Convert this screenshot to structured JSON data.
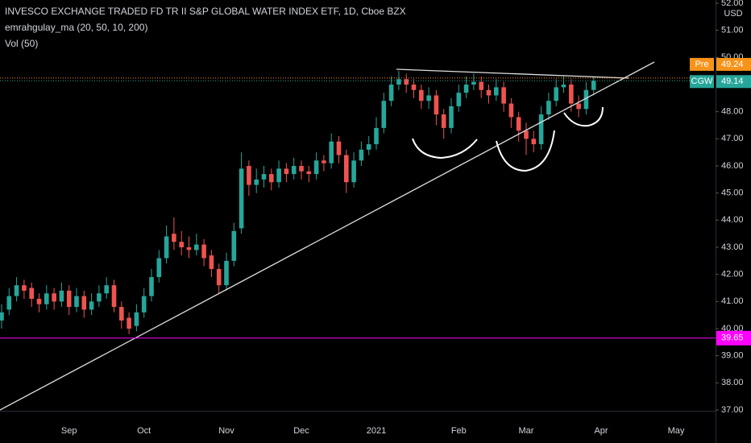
{
  "chart_data": {
    "type": "candlestick",
    "title": "INVESCO EXCHANGE TRADED FD TR II S&P GLOBAL WATER INDEX ETF, 1D, Cboe BZX",
    "indicators": [
      "emrahgulay_ma (20, 50, 10, 200)",
      "Vol (50)"
    ],
    "currency": "USD",
    "up_color": "#26a69a",
    "down_color": "#ef5350",
    "categories": [
      null,
      null,
      null,
      null,
      null,
      null,
      null,
      null,
      null,
      "Sep",
      null,
      null,
      null,
      null,
      null,
      null,
      null,
      null,
      null,
      "Oct",
      null,
      null,
      null,
      null,
      null,
      null,
      null,
      null,
      null,
      null,
      "Nov",
      null,
      null,
      null,
      null,
      null,
      null,
      null,
      null,
      null,
      "Dec",
      null,
      null,
      null,
      null,
      null,
      null,
      null,
      null,
      null,
      "2021",
      null,
      null,
      null,
      null,
      null,
      null,
      null,
      null,
      null,
      null,
      "Feb",
      null,
      null,
      null,
      null,
      null,
      null,
      null,
      null,
      "Mar",
      null,
      null,
      null,
      null,
      null,
      null,
      null,
      null,
      null,
      "Apr",
      null,
      null,
      null,
      null,
      null,
      null,
      null,
      null,
      null,
      "May",
      null,
      null,
      null,
      null,
      null
    ],
    "open": [
      40.3,
      40.7,
      41.2,
      41.6,
      41.5,
      41.1,
      40.9,
      41.3,
      41.0,
      41.4,
      40.8,
      41.2,
      40.7,
      41.0,
      41.3,
      41.6,
      40.8,
      40.4,
      40.1,
      40.6,
      41.2,
      41.9,
      42.6,
      43.5,
      43.2,
      43.0,
      42.9,
      43.1,
      42.7,
      42.2,
      41.6,
      42.5,
      43.7,
      46.0,
      45.3,
      45.5,
      45.7,
      45.4,
      45.9,
      45.7,
      46.0,
      45.8,
      45.7,
      46.2,
      46.1,
      46.9,
      46.4,
      45.4,
      46.2,
      46.6,
      46.8,
      47.4,
      48.4,
      49.0,
      49.2,
      49.0,
      48.8,
      48.4,
      48.6,
      47.9,
      47.4,
      48.2,
      48.7,
      49.0,
      49.1,
      48.8,
      48.6,
      48.9,
      48.3,
      47.8,
      47.3,
      47.0,
      46.8,
      47.9,
      48.4,
      48.9,
      49.0,
      48.3,
      48.1,
      48.8,
      null,
      null,
      null,
      null,
      null,
      null,
      null,
      null,
      null,
      null,
      null,
      null,
      null,
      null,
      null,
      null
    ],
    "high": [
      40.9,
      41.5,
      41.9,
      41.8,
      41.7,
      41.3,
      41.6,
      41.5,
      41.7,
      41.6,
      41.5,
      41.4,
      41.3,
      41.6,
      41.9,
      41.8,
      41.0,
      40.6,
      40.9,
      41.5,
      42.2,
      42.9,
      43.8,
      44.1,
      43.6,
      43.4,
      43.5,
      43.3,
      42.9,
      42.4,
      42.8,
      43.9,
      46.5,
      46.2,
      45.9,
      46.0,
      45.9,
      46.2,
      46.1,
      46.3,
      46.2,
      46.0,
      46.5,
      46.4,
      47.2,
      47.1,
      46.6,
      46.5,
      46.9,
      47.1,
      47.8,
      48.7,
      49.3,
      49.5,
      49.4,
      49.2,
      49.0,
      48.9,
      48.8,
      48.1,
      48.5,
      49.0,
      49.3,
      49.4,
      49.3,
      49.0,
      49.2,
      49.1,
      48.5,
      48.0,
      47.6,
      47.3,
      48.2,
      48.7,
      49.2,
      49.3,
      49.2,
      48.6,
      49.1,
      49.3,
      null,
      null,
      null,
      null,
      null,
      null,
      null,
      null,
      null,
      null,
      null,
      null,
      null,
      null,
      null,
      null
    ],
    "low": [
      40.0,
      40.5,
      41.0,
      41.1,
      40.8,
      40.6,
      40.7,
      40.7,
      40.8,
      40.5,
      40.6,
      40.4,
      40.5,
      40.8,
      41.1,
      40.6,
      40.0,
      39.8,
      39.9,
      40.4,
      41.0,
      41.7,
      42.4,
      42.9,
      42.7,
      42.6,
      42.7,
      42.3,
      41.9,
      41.3,
      41.4,
      42.3,
      43.5,
      44.9,
      45.0,
      45.2,
      45.1,
      45.2,
      45.4,
      45.5,
      45.5,
      45.4,
      45.5,
      45.8,
      45.9,
      46.1,
      45.0,
      45.2,
      46.0,
      46.4,
      46.6,
      47.2,
      48.2,
      48.8,
      48.7,
      48.5,
      48.1,
      48.1,
      47.5,
      47.0,
      47.2,
      48.0,
      48.5,
      48.8,
      48.5,
      48.3,
      48.4,
      48.0,
      47.4,
      46.9,
      46.4,
      46.5,
      46.6,
      47.7,
      48.2,
      48.7,
      48.0,
      47.8,
      47.9,
      48.6,
      null,
      null,
      null,
      null,
      null,
      null,
      null,
      null,
      null,
      null,
      null,
      null,
      null,
      null,
      null,
      null
    ],
    "close": [
      40.6,
      41.2,
      41.6,
      41.4,
      41.1,
      40.9,
      41.3,
      41.0,
      41.4,
      40.8,
      41.2,
      40.7,
      41.0,
      41.3,
      41.6,
      40.8,
      40.3,
      40.0,
      40.6,
      41.2,
      41.9,
      42.6,
      43.4,
      43.2,
      43.0,
      42.9,
      43.1,
      42.6,
      42.2,
      41.6,
      42.5,
      43.6,
      45.9,
      45.3,
      45.5,
      45.7,
      45.4,
      45.9,
      45.7,
      46.0,
      45.8,
      45.7,
      46.2,
      46.1,
      46.9,
      46.4,
      45.4,
      46.2,
      46.6,
      46.8,
      47.4,
      48.4,
      49.0,
      49.2,
      49.0,
      48.8,
      48.4,
      48.6,
      47.9,
      47.4,
      48.2,
      48.7,
      49.0,
      49.1,
      48.8,
      48.6,
      48.9,
      48.3,
      47.8,
      47.3,
      47.0,
      46.8,
      47.9,
      48.4,
      48.9,
      49.0,
      48.3,
      48.1,
      48.8,
      49.14,
      null,
      null,
      null,
      null,
      null,
      null,
      null,
      null,
      null,
      null,
      null,
      null,
      null,
      null,
      null,
      null
    ],
    "ylim": [
      37,
      52
    ],
    "yticks": [
      {
        "value": 37,
        "label": "37.00"
      },
      {
        "value": 38,
        "label": "38.00"
      },
      {
        "value": 39,
        "label": "39.00"
      },
      {
        "value": 40,
        "label": "40.00"
      },
      {
        "value": 41,
        "label": "41.00"
      },
      {
        "value": 42,
        "label": "42.00"
      },
      {
        "value": 43,
        "label": "43.00"
      },
      {
        "value": 44,
        "label": "44.00"
      },
      {
        "value": 45,
        "label": "45.00"
      },
      {
        "value": 46,
        "label": "46.00"
      },
      {
        "value": 47,
        "label": "47.00"
      },
      {
        "value": 48,
        "label": "48.00"
      },
      {
        "value": 49,
        "label": "49.00"
      },
      {
        "value": 50,
        "label": "50.00"
      },
      {
        "value": 51,
        "label": "51.00"
      },
      {
        "value": 52,
        "label": "52.00"
      }
    ],
    "price_labels": [
      {
        "name": "Pre",
        "value": 49.24,
        "color": "#f7931a"
      },
      {
        "name": "CGW",
        "value": 49.14,
        "color": "#26a69a"
      }
    ],
    "level": {
      "value": 39.65,
      "label": "39.65",
      "color": "#ff00ff"
    }
  }
}
